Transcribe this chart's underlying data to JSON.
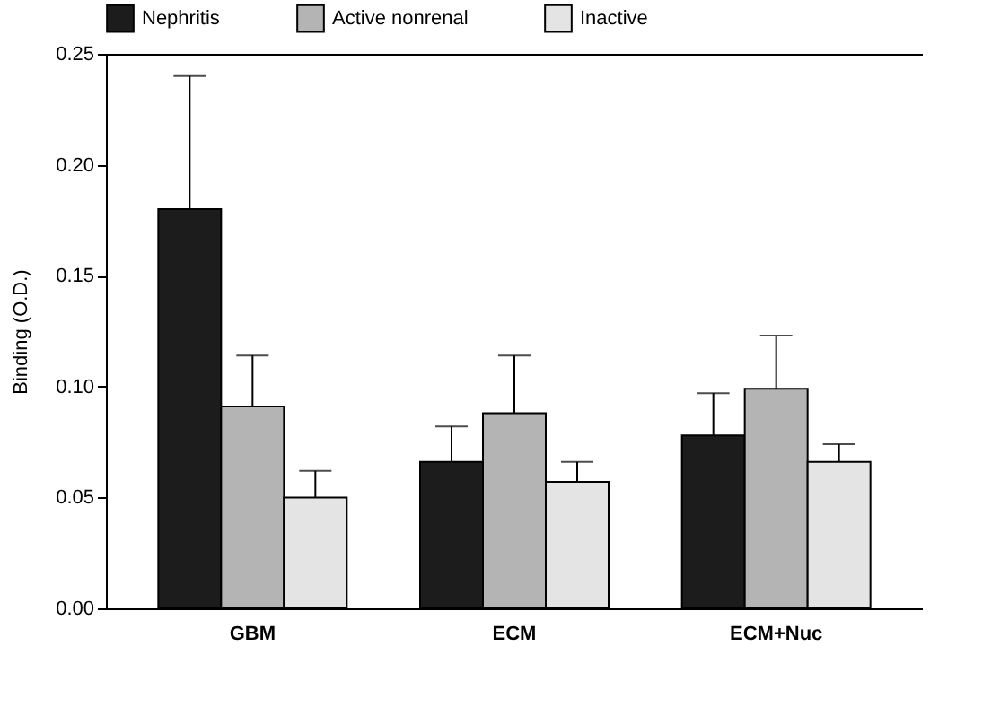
{
  "chart_data": {
    "type": "bar",
    "ylabel": "Binding (O.D.)",
    "categories": [
      "GBM",
      "ECM",
      "ECM+Nuc"
    ],
    "series": [
      {
        "name": "Nephritis",
        "color": "#1c1c1c",
        "values": [
          0.18,
          0.066,
          0.078
        ],
        "errors": [
          [
            0.18,
            0.24
          ],
          [
            0.066,
            0.082
          ],
          [
            0.078,
            0.097
          ]
        ]
      },
      {
        "name": "Active nonrenal",
        "color": "#b4b4b4",
        "values": [
          0.091,
          0.088,
          0.099
        ],
        "errors": [
          [
            0.091,
            0.114
          ],
          [
            0.088,
            0.114
          ],
          [
            0.099,
            0.123
          ]
        ]
      },
      {
        "name": "Inactive",
        "color": "#e4e4e4",
        "values": [
          0.05,
          0.057,
          0.066
        ],
        "errors": [
          [
            0.05,
            0.062
          ],
          [
            0.057,
            0.066
          ],
          [
            0.066,
            0.074
          ]
        ]
      }
    ],
    "ylim": [
      0,
      0.25
    ],
    "yticks": [
      {
        "value": 0,
        "label": "0.00"
      },
      {
        "value": 0.05,
        "label": "0.05"
      },
      {
        "value": 0.1,
        "label": "0.10"
      },
      {
        "value": 0.15,
        "label": "0.15"
      },
      {
        "value": 0.2,
        "label": "0.20"
      },
      {
        "value": 0.25,
        "label": "0.25"
      }
    ],
    "grid": false,
    "legend": "top"
  }
}
